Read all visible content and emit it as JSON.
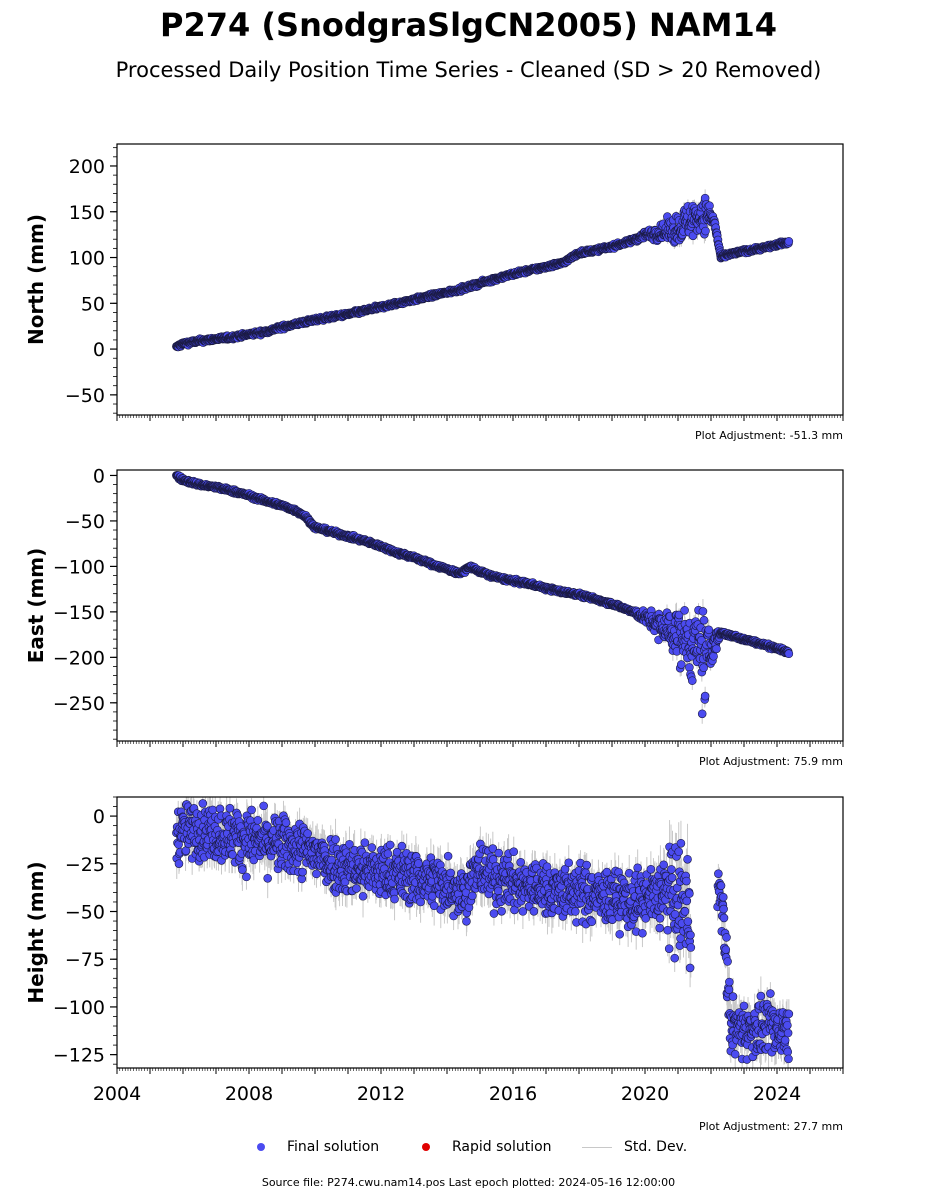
{
  "title": "P274 (SnodgraSlgCN2005) NAM14",
  "subtitle": "Processed Daily Position Time Series - Cleaned (SD > 20 Removed)",
  "colors": {
    "final": "#4b4bf0",
    "final_edge": "#1a1a40",
    "rapid": "#e00000",
    "std": "#c8c8c8"
  },
  "legend": {
    "final": "Final solution",
    "rapid": "Rapid solution",
    "std": "Std. Dev."
  },
  "source": "Source file: P274.cwu.nam14.pos  Last epoch plotted: 2024-05-16 12:00:00",
  "chart_data": [
    {
      "type": "scatter",
      "ylabel": "North (mm)",
      "adjustment": "Plot Adjustment: -51.3 mm",
      "xlim": [
        2004,
        2026
      ],
      "ylim": [
        -72,
        224
      ],
      "yticks": [
        -50,
        0,
        50,
        100,
        150,
        200
      ],
      "xticks": [
        2004,
        2008,
        2012,
        2016,
        2020,
        2024
      ],
      "show_xtick_labels": false,
      "series": [
        {
          "x": [
            2005.8,
            2006.0,
            2006.5,
            2007.0,
            2007.5,
            2008.0,
            2008.5,
            2009.0,
            2009.5,
            2010.0,
            2010.5,
            2011.0,
            2011.5,
            2012.0,
            2012.5,
            2013.0,
            2013.5,
            2014.0,
            2014.5,
            2015.0,
            2015.5,
            2016.0,
            2016.5,
            2017.0,
            2017.5,
            2018.0,
            2018.5,
            2019.0,
            2019.5,
            2020.0,
            2020.5,
            2021.0,
            2021.3,
            2021.6,
            2021.9,
            2022.1,
            2022.3,
            2022.5,
            2023.0,
            2023.5,
            2024.0,
            2024.37
          ],
          "y": [
            2,
            6,
            9,
            11,
            13,
            16,
            19,
            24,
            28,
            32,
            35,
            38,
            42,
            46,
            50,
            54,
            58,
            62,
            66,
            72,
            77,
            82,
            86,
            90,
            94,
            105,
            108,
            112,
            117,
            125,
            127,
            132,
            140,
            145,
            148,
            140,
            100,
            103,
            107,
            110,
            114,
            117
          ],
          "err": [
            2,
            2,
            2,
            2,
            2,
            2,
            2,
            2,
            2,
            2,
            2,
            2,
            2,
            2,
            2,
            2,
            2,
            2,
            2,
            2,
            2,
            2,
            2,
            2,
            2,
            2,
            2,
            2,
            2,
            3,
            5,
            8,
            8,
            10,
            8,
            5,
            2,
            2,
            2,
            2,
            2,
            2
          ],
          "jitter": [
            1,
            1,
            1,
            1,
            1,
            1,
            1,
            1,
            1,
            1,
            1,
            1,
            1,
            1,
            1,
            1,
            1,
            1,
            1,
            1,
            1,
            1,
            1,
            1,
            1,
            1,
            1,
            1,
            1,
            2,
            4,
            8,
            9,
            10,
            8,
            3,
            1,
            1,
            1,
            1,
            1,
            1
          ]
        }
      ]
    },
    {
      "type": "scatter",
      "ylabel": "East (mm)",
      "adjustment": "Plot Adjustment: 75.9 mm",
      "xlim": [
        2004,
        2026
      ],
      "ylim": [
        -292,
        6
      ],
      "yticks": [
        -250,
        -200,
        -150,
        -100,
        -50,
        0
      ],
      "xticks": [
        2004,
        2008,
        2012,
        2016,
        2020,
        2024
      ],
      "show_xtick_labels": false,
      "series": [
        {
          "x": [
            2005.8,
            2006.0,
            2006.5,
            2007.0,
            2007.5,
            2008.0,
            2008.5,
            2009.0,
            2009.5,
            2009.7,
            2010.0,
            2010.5,
            2011.0,
            2011.5,
            2012.0,
            2012.5,
            2013.0,
            2013.5,
            2014.0,
            2014.4,
            2014.7,
            2015.0,
            2015.5,
            2016.0,
            2016.5,
            2017.0,
            2017.5,
            2018.0,
            2018.5,
            2019.0,
            2019.5,
            2020.0,
            2020.5,
            2021.0,
            2021.5,
            2021.8,
            2022.0,
            2022.3,
            2022.5,
            2023.0,
            2023.5,
            2024.0,
            2024.37
          ],
          "y": [
            0,
            -5,
            -10,
            -13,
            -17,
            -22,
            -28,
            -33,
            -40,
            -45,
            -57,
            -62,
            -67,
            -72,
            -78,
            -85,
            -90,
            -97,
            -103,
            -108,
            -100,
            -106,
            -112,
            -116,
            -119,
            -124,
            -128,
            -131,
            -136,
            -141,
            -148,
            -156,
            -166,
            -175,
            -190,
            -200,
            -192,
            -173,
            -175,
            -180,
            -185,
            -190,
            -195
          ],
          "err": [
            2,
            2,
            2,
            2,
            2,
            2,
            2,
            2,
            2,
            2,
            2,
            2,
            2,
            2,
            2,
            2,
            2,
            2,
            2,
            2,
            2,
            2,
            2,
            2,
            2,
            2,
            2,
            2,
            2,
            2,
            2,
            3,
            6,
            10,
            10,
            12,
            8,
            2,
            2,
            2,
            2,
            2,
            2
          ],
          "jitter": [
            1,
            1,
            1,
            1,
            1,
            1,
            1,
            1,
            1,
            1,
            1,
            1,
            1,
            1,
            1,
            1,
            1,
            1,
            1,
            1,
            1,
            1,
            1,
            1,
            1,
            1,
            1,
            1,
            1,
            1,
            1,
            3,
            8,
            14,
            18,
            28,
            10,
            1,
            1,
            1,
            1,
            1,
            1
          ]
        }
      ]
    },
    {
      "type": "scatter",
      "ylabel": "Height (mm)",
      "adjustment": "Plot Adjustment: 27.7 mm",
      "xlim": [
        2004,
        2026
      ],
      "ylim": [
        -132,
        10
      ],
      "yticks": [
        -125,
        -100,
        -75,
        -50,
        -25,
        0
      ],
      "xticks": [
        2004,
        2008,
        2012,
        2016,
        2020,
        2024
      ],
      "show_xtick_labels": true,
      "series": [
        {
          "x": [
            2005.8,
            2006.0,
            2006.5,
            2007.0,
            2007.5,
            2008.0,
            2008.5,
            2009.0,
            2009.5,
            2010.0,
            2010.5,
            2011.0,
            2011.5,
            2012.0,
            2012.5,
            2013.0,
            2013.5,
            2014.0,
            2014.5,
            2015.0,
            2015.5,
            2016.0,
            2016.5,
            2017.0,
            2017.5,
            2018.0,
            2018.5,
            2019.0,
            2019.5,
            2020.0,
            2020.5,
            2021.0,
            2021.4,
            2022.2,
            2022.35,
            2022.6,
            2023.0,
            2023.5,
            2024.0,
            2024.37
          ],
          "y": [
            -10,
            -8,
            -7,
            -9,
            -10,
            -12,
            -14,
            -15,
            -17,
            -20,
            -24,
            -27,
            -28,
            -30,
            -30,
            -32,
            -34,
            -35,
            -40,
            -28,
            -33,
            -35,
            -37,
            -38,
            -39,
            -40,
            -42,
            -43,
            -44,
            -45,
            -40,
            -45,
            -50,
            -40,
            -48,
            -110,
            -112,
            -111,
            -112,
            -112
          ],
          "err": [
            8,
            8,
            8,
            8,
            8,
            8,
            8,
            8,
            8,
            8,
            8,
            8,
            8,
            8,
            8,
            8,
            8,
            8,
            8,
            8,
            8,
            8,
            8,
            8,
            8,
            8,
            8,
            8,
            8,
            8,
            10,
            12,
            14,
            8,
            8,
            8,
            8,
            8,
            8,
            8
          ],
          "jitter": [
            7,
            7,
            7,
            7,
            7,
            7,
            7,
            7,
            7,
            7,
            7,
            7,
            7,
            7,
            7,
            7,
            7,
            7,
            7,
            7,
            7,
            7,
            7,
            7,
            7,
            7,
            7,
            7,
            7,
            8,
            10,
            14,
            16,
            8,
            7,
            7,
            7,
            7,
            7,
            7
          ]
        }
      ]
    }
  ]
}
